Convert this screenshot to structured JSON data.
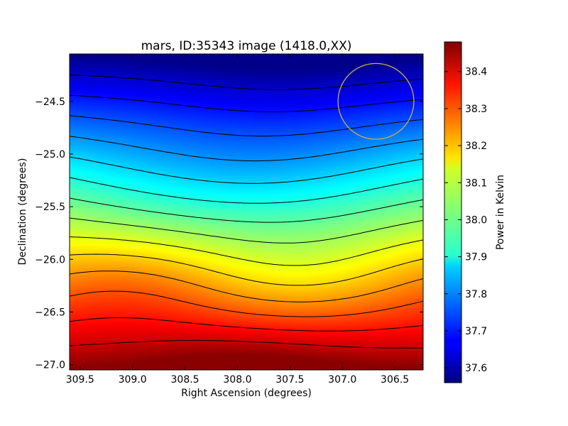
{
  "chart_data": {
    "type": "heatmap",
    "title": "mars, ID:35343 image (1418.0,XX)",
    "xlabel": "Right Ascension (degrees)",
    "ylabel": "Declination (degrees)",
    "colorbar_label": "Power in Kelvin",
    "xlim": [
      309.6,
      306.23
    ],
    "ylim": [
      -27.05,
      -24.05
    ],
    "x_ticks": [
      309.5,
      309.0,
      308.5,
      308.0,
      307.5,
      307.0,
      306.5
    ],
    "x_tick_labels": [
      "309.5",
      "309.0",
      "308.5",
      "308.0",
      "307.5",
      "307.0",
      "306.5"
    ],
    "y_ticks": [
      -24.5,
      -25.0,
      -25.5,
      -26.0,
      -26.5,
      -27.0
    ],
    "y_tick_labels": [
      "−24.5",
      "−25.0",
      "−25.5",
      "−26.0",
      "−26.5",
      "−27.0"
    ],
    "colorbar_range": [
      37.56,
      38.48
    ],
    "colorbar_ticks": [
      37.6,
      37.7,
      37.8,
      37.9,
      38.0,
      38.1,
      38.2,
      38.3,
      38.4
    ],
    "colorbar_tick_labels": [
      "37.6",
      "37.7",
      "37.8",
      "37.9",
      "38.0",
      "38.1",
      "38.2",
      "38.3",
      "38.4"
    ],
    "colormap": "jet",
    "field": {
      "min_value": 37.57,
      "min_location": {
        "ra": 307.8,
        "dec": -24.05
      },
      "max_value": 38.47,
      "max_location": {
        "ra": 307.9,
        "dec": -27.05
      },
      "gradient": "increasing from north (top) to south (bottom)"
    },
    "contour_count": 14,
    "contour_color": "#000000",
    "beam_circle": {
      "ra": 306.68,
      "dec": -24.5,
      "radius_deg": 0.36,
      "color": "#c8b040"
    }
  }
}
